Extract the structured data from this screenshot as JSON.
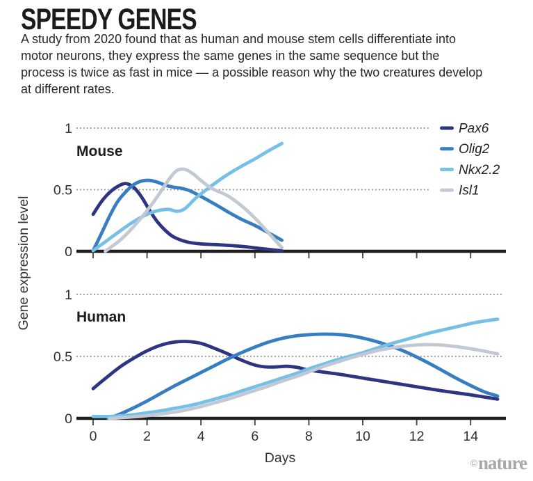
{
  "header": {
    "title": "SPEEDY GENES",
    "description": "A study from 2020 found that as human and mouse stem cells differentiate into motor neurons, they express the same genes in the same sequence but the process is twice as fast in mice — a possible reason why the two creatures develop at different rates."
  },
  "axes": {
    "y_label": "Gene expression level",
    "x_label": "Days"
  },
  "footer": {
    "credit_symbol": "©",
    "credit_name": "nature"
  },
  "colors": {
    "pax6": "#2d3583",
    "olig2": "#377dc2",
    "nkx22": "#76c0e8",
    "isl1": "#c3c9d4",
    "axis": "#1d1d1d",
    "grid": "#8d8d8d",
    "credit": "#a8a8a8"
  },
  "chart_data": [
    {
      "type": "line",
      "title": "Mouse",
      "xlabel": "Days",
      "ylabel": "Gene expression level",
      "x_range": [
        0,
        15.3
      ],
      "y_range": [
        0,
        1
      ],
      "x_ticks": [
        0,
        2,
        4,
        6,
        8,
        10,
        12,
        14
      ],
      "y_ticks": [
        0,
        0.5,
        1
      ],
      "grid": "dotted horizontal lines at y=0.5 and y=1",
      "legend_position": "top-right",
      "series": [
        {
          "name": "Pax6",
          "color": "#2d3583",
          "points": [
            [
              0,
              0.3
            ],
            [
              0.3,
              0.4
            ],
            [
              0.6,
              0.475
            ],
            [
              0.9,
              0.525
            ],
            [
              1.2,
              0.55
            ],
            [
              1.5,
              0.52
            ],
            [
              1.8,
              0.44
            ],
            [
              2.1,
              0.33
            ],
            [
              2.4,
              0.235
            ],
            [
              2.7,
              0.165
            ],
            [
              3,
              0.115
            ],
            [
              3.5,
              0.075
            ],
            [
              4,
              0.06
            ],
            [
              4.5,
              0.055
            ],
            [
              5,
              0.048
            ],
            [
              5.5,
              0.04
            ],
            [
              6,
              0.028
            ],
            [
              6.5,
              0.015
            ],
            [
              7,
              0.004
            ]
          ]
        },
        {
          "name": "Olig2",
          "color": "#377dc2",
          "points": [
            [
              0,
              0.005
            ],
            [
              0.3,
              0.14
            ],
            [
              0.6,
              0.28
            ],
            [
              0.9,
              0.4
            ],
            [
              1.2,
              0.48
            ],
            [
              1.5,
              0.54
            ],
            [
              1.8,
              0.57
            ],
            [
              2.1,
              0.575
            ],
            [
              2.4,
              0.56
            ],
            [
              2.7,
              0.535
            ],
            [
              3,
              0.52
            ],
            [
              3.3,
              0.51
            ],
            [
              3.6,
              0.49
            ],
            [
              4,
              0.445
            ],
            [
              4.5,
              0.385
            ],
            [
              5,
              0.32
            ],
            [
              5.5,
              0.26
            ],
            [
              6,
              0.21
            ],
            [
              6.5,
              0.15
            ],
            [
              7,
              0.09
            ]
          ]
        },
        {
          "name": "Nkx2.2",
          "color": "#76c0e8",
          "points": [
            [
              0,
              0.005
            ],
            [
              0.5,
              0.085
            ],
            [
              1,
              0.165
            ],
            [
              1.5,
              0.24
            ],
            [
              2,
              0.3
            ],
            [
              2.4,
              0.33
            ],
            [
              2.8,
              0.34
            ],
            [
              3.1,
              0.325
            ],
            [
              3.4,
              0.345
            ],
            [
              3.8,
              0.43
            ],
            [
              4.2,
              0.5
            ],
            [
              4.6,
              0.565
            ],
            [
              5,
              0.625
            ],
            [
              5.5,
              0.69
            ],
            [
              6,
              0.75
            ],
            [
              6.5,
              0.815
            ],
            [
              7,
              0.875
            ]
          ]
        },
        {
          "name": "Isl1",
          "color": "#c3c9d4",
          "points": [
            [
              0.45,
              0.0
            ],
            [
              1,
              0.09
            ],
            [
              1.5,
              0.2
            ],
            [
              2,
              0.33
            ],
            [
              2.5,
              0.48
            ],
            [
              2.8,
              0.58
            ],
            [
              3.1,
              0.655
            ],
            [
              3.4,
              0.665
            ],
            [
              3.7,
              0.63
            ],
            [
              4,
              0.575
            ],
            [
              4.4,
              0.51
            ],
            [
              5,
              0.45
            ],
            [
              5.5,
              0.37
            ],
            [
              6,
              0.27
            ],
            [
              6.5,
              0.15
            ],
            [
              7,
              0.03
            ]
          ]
        }
      ]
    },
    {
      "type": "line",
      "title": "Human",
      "xlabel": "Days",
      "ylabel": "Gene expression level",
      "x_range": [
        0,
        15.3
      ],
      "y_range": [
        0,
        1
      ],
      "x_ticks": [
        0,
        2,
        4,
        6,
        8,
        10,
        12,
        14
      ],
      "y_ticks": [
        0,
        0.5,
        1
      ],
      "grid": "dotted horizontal lines at y=0.5 and y=1",
      "series": [
        {
          "name": "Pax6",
          "color": "#2d3583",
          "points": [
            [
              0,
              0.24
            ],
            [
              0.5,
              0.33
            ],
            [
              1,
              0.415
            ],
            [
              1.5,
              0.485
            ],
            [
              2,
              0.545
            ],
            [
              2.5,
              0.59
            ],
            [
              3,
              0.615
            ],
            [
              3.5,
              0.62
            ],
            [
              4,
              0.605
            ],
            [
              4.5,
              0.565
            ],
            [
              5,
              0.52
            ],
            [
              5.5,
              0.47
            ],
            [
              6,
              0.43
            ],
            [
              6.4,
              0.415
            ],
            [
              6.8,
              0.415
            ],
            [
              7.2,
              0.42
            ],
            [
              7.6,
              0.41
            ],
            [
              8,
              0.39
            ],
            [
              9,
              0.36
            ],
            [
              10,
              0.325
            ],
            [
              11,
              0.29
            ],
            [
              12,
              0.255
            ],
            [
              13,
              0.22
            ],
            [
              14,
              0.19
            ],
            [
              15,
              0.155
            ]
          ]
        },
        {
          "name": "Olig2",
          "color": "#377dc2",
          "points": [
            [
              0.55,
              0.0
            ],
            [
              1,
              0.035
            ],
            [
              1.5,
              0.085
            ],
            [
              2,
              0.14
            ],
            [
              2.5,
              0.2
            ],
            [
              3,
              0.26
            ],
            [
              3.5,
              0.315
            ],
            [
              4,
              0.37
            ],
            [
              4.5,
              0.425
            ],
            [
              5,
              0.48
            ],
            [
              5.5,
              0.53
            ],
            [
              6,
              0.575
            ],
            [
              6.5,
              0.615
            ],
            [
              7,
              0.645
            ],
            [
              7.5,
              0.665
            ],
            [
              8,
              0.675
            ],
            [
              8.5,
              0.68
            ],
            [
              9,
              0.678
            ],
            [
              9.5,
              0.668
            ],
            [
              10,
              0.648
            ],
            [
              10.5,
              0.62
            ],
            [
              11,
              0.585
            ],
            [
              11.5,
              0.545
            ],
            [
              12,
              0.495
            ],
            [
              12.5,
              0.44
            ],
            [
              13,
              0.38
            ],
            [
              13.5,
              0.32
            ],
            [
              14,
              0.265
            ],
            [
              14.5,
              0.215
            ],
            [
              15,
              0.18
            ]
          ]
        },
        {
          "name": "Nkx2.2",
          "color": "#76c0e8",
          "points": [
            [
              0,
              0.015
            ],
            [
              0.6,
              0.015
            ],
            [
              1,
              0.02
            ],
            [
              1.5,
              0.03
            ],
            [
              2,
              0.045
            ],
            [
              2.5,
              0.06
            ],
            [
              3,
              0.08
            ],
            [
              3.5,
              0.1
            ],
            [
              4,
              0.125
            ],
            [
              4.5,
              0.155
            ],
            [
              5,
              0.185
            ],
            [
              5.5,
              0.22
            ],
            [
              6,
              0.255
            ],
            [
              6.5,
              0.29
            ],
            [
              7,
              0.325
            ],
            [
              7.5,
              0.36
            ],
            [
              8,
              0.4
            ],
            [
              8.5,
              0.435
            ],
            [
              9,
              0.47
            ],
            [
              9.5,
              0.5
            ],
            [
              10,
              0.53
            ],
            [
              10.5,
              0.565
            ],
            [
              11,
              0.6
            ],
            [
              11.5,
              0.63
            ],
            [
              12,
              0.66
            ],
            [
              12.5,
              0.69
            ],
            [
              13,
              0.715
            ],
            [
              13.5,
              0.74
            ],
            [
              14,
              0.765
            ],
            [
              14.5,
              0.785
            ],
            [
              15,
              0.8
            ]
          ]
        },
        {
          "name": "Isl1",
          "color": "#c3c9d4",
          "points": [
            [
              0.6,
              0.0
            ],
            [
              1,
              0.005
            ],
            [
              1.5,
              0.012
            ],
            [
              2,
              0.022
            ],
            [
              2.5,
              0.035
            ],
            [
              3,
              0.05
            ],
            [
              3.5,
              0.07
            ],
            [
              4,
              0.095
            ],
            [
              4.5,
              0.125
            ],
            [
              5,
              0.155
            ],
            [
              5.5,
              0.19
            ],
            [
              6,
              0.225
            ],
            [
              6.5,
              0.26
            ],
            [
              7,
              0.3
            ],
            [
              7.5,
              0.335
            ],
            [
              8,
              0.375
            ],
            [
              8.5,
              0.415
            ],
            [
              9,
              0.45
            ],
            [
              9.5,
              0.485
            ],
            [
              10,
              0.515
            ],
            [
              10.5,
              0.545
            ],
            [
              11,
              0.565
            ],
            [
              11.5,
              0.582
            ],
            [
              12,
              0.592
            ],
            [
              12.5,
              0.595
            ],
            [
              13,
              0.59
            ],
            [
              13.5,
              0.578
            ],
            [
              14,
              0.562
            ],
            [
              14.5,
              0.543
            ],
            [
              15,
              0.52
            ]
          ]
        }
      ]
    }
  ]
}
